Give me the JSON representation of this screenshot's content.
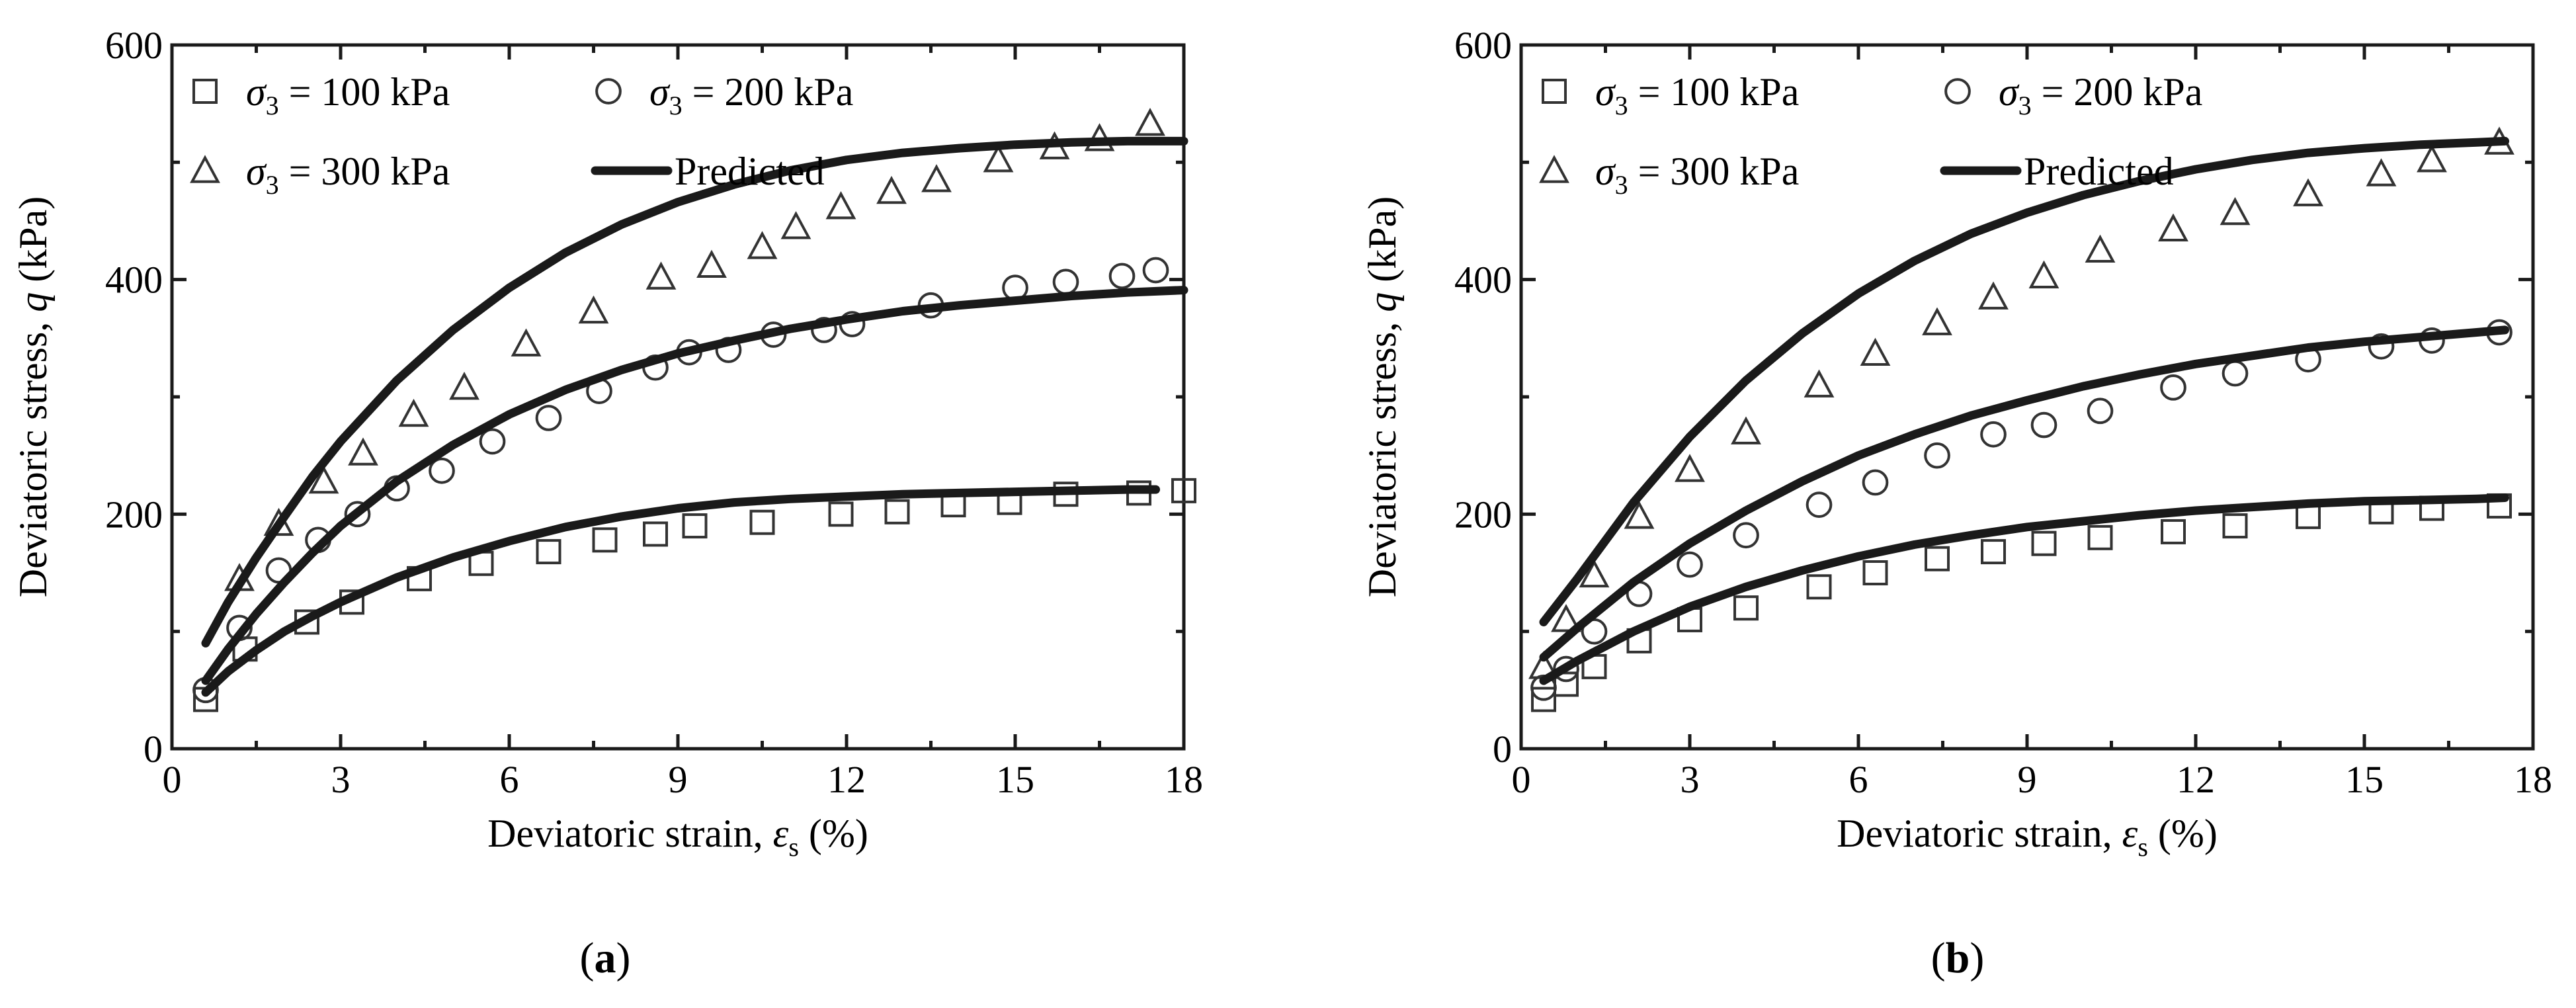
{
  "figure": {
    "background": "#ffffff",
    "line_color": "#1a1a1a"
  },
  "chart_data": [
    {
      "type": "scatter",
      "panel_label": "a",
      "caption": "(a)",
      "xlabel": "Deviatoric strain, ε_s (%)",
      "xlabel_main": "Deviatoric strain, ",
      "xlabel_symbol": "ε",
      "xlabel_sub": "s",
      "xlabel_tail": " (%)",
      "ylabel": "Deviatoric stress, q (kPa)",
      "ylabel_main": "Deviatoric stress, ",
      "ylabel_symbol": "q",
      "ylabel_tail": " (kPa)",
      "xlim": [
        0,
        18
      ],
      "ylim": [
        0,
        600
      ],
      "xticks": [
        0,
        3,
        6,
        9,
        12,
        15,
        18
      ],
      "yticks": [
        0,
        200,
        400,
        600
      ],
      "legend": [
        {
          "symbol": "σ",
          "sub": "3",
          "text": " = 100 kPa",
          "marker": "square"
        },
        {
          "symbol": "σ",
          "sub": "3",
          "text": " = 200 kPa",
          "marker": "circle"
        },
        {
          "symbol": "σ",
          "sub": "3",
          "text": " = 300 kPa",
          "marker": "triangle"
        },
        {
          "symbol": "",
          "sub": "",
          "text": "Predicted",
          "marker": "line"
        }
      ],
      "series": [
        {
          "name": "σ3 = 100 kPa",
          "marker": "square",
          "x": [
            0.6,
            1.3,
            2.4,
            3.2,
            4.4,
            5.5,
            6.7,
            7.7,
            8.6,
            9.3,
            10.5,
            11.9,
            12.9,
            13.9,
            14.9,
            15.9,
            17.2,
            18.0
          ],
          "y": [
            42,
            85,
            108,
            125,
            145,
            158,
            168,
            178,
            183,
            190,
            193,
            200,
            202,
            208,
            210,
            217,
            218,
            220
          ]
        },
        {
          "name": "σ3 = 200 kPa",
          "marker": "circle",
          "x": [
            0.6,
            1.2,
            1.9,
            2.6,
            3.3,
            4.0,
            4.8,
            5.7,
            6.7,
            7.6,
            8.6,
            9.2,
            9.9,
            10.7,
            11.6,
            12.1,
            13.5,
            15.0,
            15.9,
            16.9,
            17.5
          ],
          "y": [
            50,
            103,
            152,
            178,
            200,
            222,
            237,
            262,
            282,
            305,
            325,
            338,
            340,
            353,
            357,
            362,
            378,
            393,
            398,
            403,
            408
          ]
        },
        {
          "name": "σ3 = 300 kPa",
          "marker": "triangle",
          "x": [
            1.2,
            1.9,
            2.7,
            3.4,
            4.3,
            5.2,
            6.3,
            7.5,
            8.7,
            9.6,
            10.5,
            11.1,
            11.9,
            12.8,
            13.6,
            14.7,
            15.7,
            16.5,
            17.4
          ],
          "y": [
            145,
            192,
            228,
            252,
            285,
            308,
            345,
            373,
            402,
            412,
            428,
            445,
            462,
            475,
            485,
            502,
            513,
            520,
            533
          ]
        },
        {
          "name": "Predicted (σ3 = 100 kPa)",
          "marker": "line",
          "x": [
            0.6,
            1.0,
            1.5,
            2.0,
            2.5,
            3.0,
            4.0,
            5.0,
            6.0,
            7.0,
            8.0,
            9.0,
            10.0,
            11.0,
            12.0,
            13.0,
            14.0,
            15.0,
            16.0,
            17.0,
            17.5
          ],
          "y": [
            48,
            66,
            84,
            100,
            113,
            125,
            146,
            163,
            177,
            189,
            198,
            205,
            210,
            213,
            215,
            217,
            218,
            219,
            220,
            221,
            221
          ]
        },
        {
          "name": "Predicted (σ3 = 200 kPa)",
          "marker": "line",
          "x": [
            0.6,
            1.0,
            1.5,
            2.0,
            2.5,
            3.0,
            4.0,
            5.0,
            6.0,
            7.0,
            8.0,
            9.0,
            10.0,
            11.0,
            12.0,
            13.0,
            14.0,
            15.0,
            16.0,
            17.0,
            18.0
          ],
          "y": [
            58,
            85,
            115,
            142,
            167,
            190,
            228,
            259,
            285,
            306,
            323,
            337,
            348,
            358,
            366,
            373,
            378,
            382,
            386,
            389,
            391
          ]
        },
        {
          "name": "Predicted (σ3 = 300 kPa)",
          "marker": "line",
          "x": [
            0.6,
            1.0,
            1.5,
            2.0,
            2.5,
            3.0,
            4.0,
            5.0,
            6.0,
            7.0,
            8.0,
            9.0,
            10.0,
            11.0,
            12.0,
            13.0,
            14.0,
            15.0,
            16.0,
            17.0,
            18.0
          ],
          "y": [
            90,
            125,
            163,
            198,
            232,
            262,
            314,
            357,
            393,
            423,
            447,
            466,
            481,
            493,
            502,
            508,
            512,
            515,
            517,
            518,
            518
          ]
        }
      ]
    },
    {
      "type": "scatter",
      "panel_label": "b",
      "caption": "(b)",
      "xlabel": "Deviatoric strain, ε_s (%)",
      "xlabel_main": "Deviatoric strain, ",
      "xlabel_symbol": "ε",
      "xlabel_sub": "s",
      "xlabel_tail": " (%)",
      "ylabel": "Deviatoric stress, q (kPa)",
      "ylabel_main": "Deviatoric stress, ",
      "ylabel_symbol": "q",
      "ylabel_tail": " (kPa)",
      "xlim": [
        0,
        18
      ],
      "ylim": [
        0,
        600
      ],
      "xticks": [
        0,
        3,
        6,
        9,
        12,
        15,
        18
      ],
      "yticks": [
        0,
        200,
        400,
        600
      ],
      "legend": [
        {
          "symbol": "σ",
          "sub": "3",
          "text": " = 100 kPa",
          "marker": "square"
        },
        {
          "symbol": "σ",
          "sub": "3",
          "text": " = 200 kPa",
          "marker": "circle"
        },
        {
          "symbol": "σ",
          "sub": "3",
          "text": " = 300 kPa",
          "marker": "triangle"
        },
        {
          "symbol": "",
          "sub": "",
          "text": "Predicted",
          "marker": "line"
        }
      ],
      "series": [
        {
          "name": "σ3 = 100 kPa",
          "marker": "square",
          "x": [
            0.4,
            0.8,
            1.3,
            2.1,
            3.0,
            4.0,
            5.3,
            6.3,
            7.4,
            8.4,
            9.3,
            10.3,
            11.6,
            12.7,
            14.0,
            15.3,
            16.2,
            17.4
          ],
          "y": [
            42,
            55,
            70,
            92,
            110,
            120,
            138,
            150,
            162,
            168,
            175,
            180,
            185,
            190,
            198,
            202,
            205,
            207
          ]
        },
        {
          "name": "σ3 = 200 kPa",
          "marker": "circle",
          "x": [
            0.4,
            0.8,
            1.3,
            2.1,
            3.0,
            4.0,
            5.3,
            6.3,
            7.4,
            8.4,
            9.3,
            10.3,
            11.6,
            12.7,
            14.0,
            15.3,
            16.2,
            17.4
          ],
          "y": [
            52,
            68,
            100,
            132,
            157,
            182,
            208,
            227,
            250,
            268,
            276,
            288,
            308,
            320,
            332,
            343,
            348,
            355
          ]
        },
        {
          "name": "σ3 = 300 kPa",
          "marker": "triangle",
          "x": [
            0.4,
            0.8,
            1.3,
            2.1,
            3.0,
            4.0,
            5.3,
            6.3,
            7.4,
            8.4,
            9.3,
            10.3,
            11.6,
            12.7,
            14.0,
            15.3,
            16.2,
            17.4
          ],
          "y": [
            70,
            110,
            148,
            198,
            238,
            270,
            310,
            337,
            363,
            385,
            403,
            425,
            443,
            457,
            473,
            490,
            502,
            517
          ]
        },
        {
          "name": "Predicted (σ3 = 100 kPa)",
          "marker": "line",
          "x": [
            0.4,
            1.0,
            2.0,
            3.0,
            4.0,
            5.0,
            6.0,
            7.0,
            8.0,
            9.0,
            10.0,
            11.0,
            12.0,
            13.0,
            14.0,
            15.0,
            16.0,
            17.0,
            17.5
          ],
          "y": [
            58,
            75,
            100,
            121,
            138,
            152,
            164,
            174,
            182,
            189,
            194,
            199,
            203,
            206,
            209,
            211,
            212,
            213,
            214
          ]
        },
        {
          "name": "Predicted (σ3 = 200 kPa)",
          "marker": "line",
          "x": [
            0.4,
            1.0,
            2.0,
            3.0,
            4.0,
            5.0,
            6.0,
            7.0,
            8.0,
            9.0,
            10.0,
            11.0,
            12.0,
            13.0,
            14.0,
            15.0,
            16.0,
            17.0,
            17.5
          ],
          "y": [
            78,
            103,
            142,
            175,
            203,
            228,
            250,
            268,
            284,
            297,
            309,
            319,
            328,
            335,
            342,
            347,
            351,
            355,
            357
          ]
        },
        {
          "name": "Predicted (σ3 = 300 kPa)",
          "marker": "line",
          "x": [
            0.4,
            1.0,
            2.0,
            3.0,
            4.0,
            5.0,
            6.0,
            7.0,
            8.0,
            9.0,
            10.0,
            11.0,
            12.0,
            13.0,
            14.0,
            15.0,
            16.0,
            17.0,
            17.5
          ],
          "y": [
            108,
            145,
            210,
            266,
            314,
            354,
            388,
            416,
            439,
            457,
            472,
            484,
            494,
            502,
            508,
            512,
            515,
            517,
            518
          ]
        }
      ]
    }
  ]
}
